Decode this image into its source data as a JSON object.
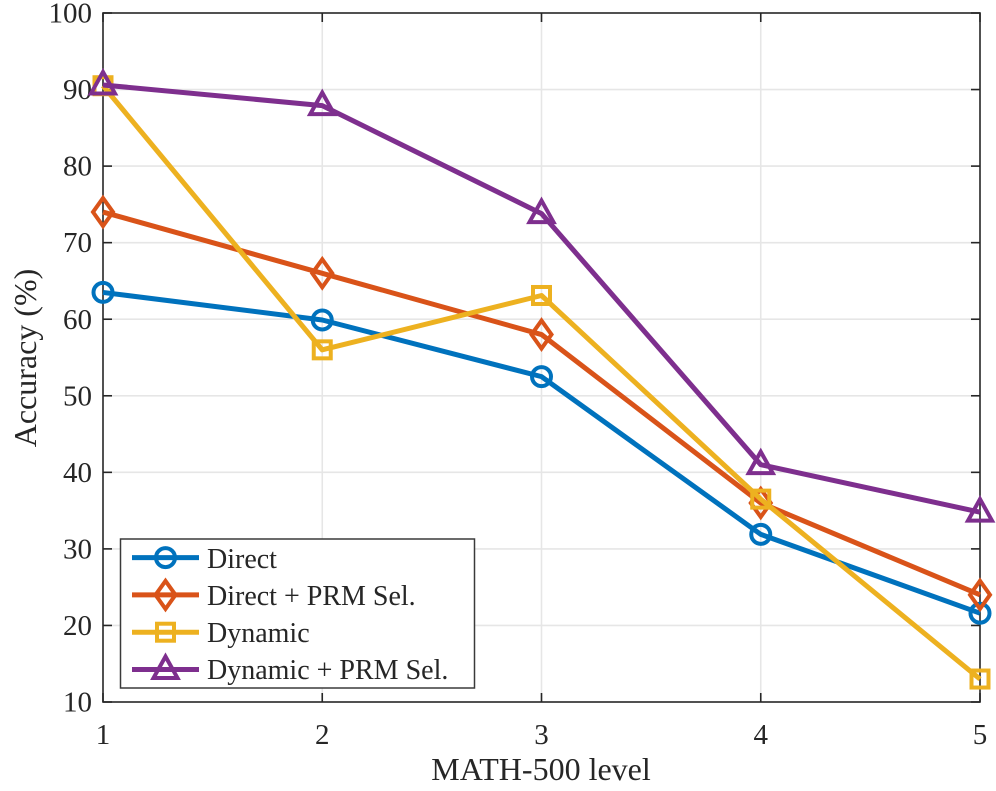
{
  "chart_data": {
    "type": "line",
    "title": "",
    "xlabel": "MATH-500 level",
    "ylabel": "Accuracy (%)",
    "x": [
      1,
      2,
      3,
      4,
      5
    ],
    "xlim": [
      1,
      5
    ],
    "ylim": [
      10,
      100
    ],
    "xticks": [
      1,
      2,
      3,
      4,
      5
    ],
    "yticks": [
      10,
      20,
      30,
      40,
      50,
      60,
      70,
      80,
      90,
      100
    ],
    "grid": true,
    "legend_position": "southwest-inside",
    "series": [
      {
        "name": "Direct",
        "color": "#0072BD",
        "marker": "circle",
        "values": [
          63.5,
          59.9,
          52.5,
          31.9,
          21.6
        ]
      },
      {
        "name": "Direct + PRM Sel.",
        "color": "#D95319",
        "marker": "diamond",
        "values": [
          74.0,
          66.0,
          58.0,
          36.0,
          24.0
        ]
      },
      {
        "name": "Dynamic",
        "color": "#EDB120",
        "marker": "square",
        "values": [
          90.5,
          56.0,
          63.1,
          36.5,
          13.0
        ]
      },
      {
        "name": "Dynamic + PRM Sel.",
        "color": "#7E2F8E",
        "marker": "triangle",
        "values": [
          90.6,
          87.9,
          73.8,
          41.0,
          34.8
        ]
      }
    ]
  }
}
